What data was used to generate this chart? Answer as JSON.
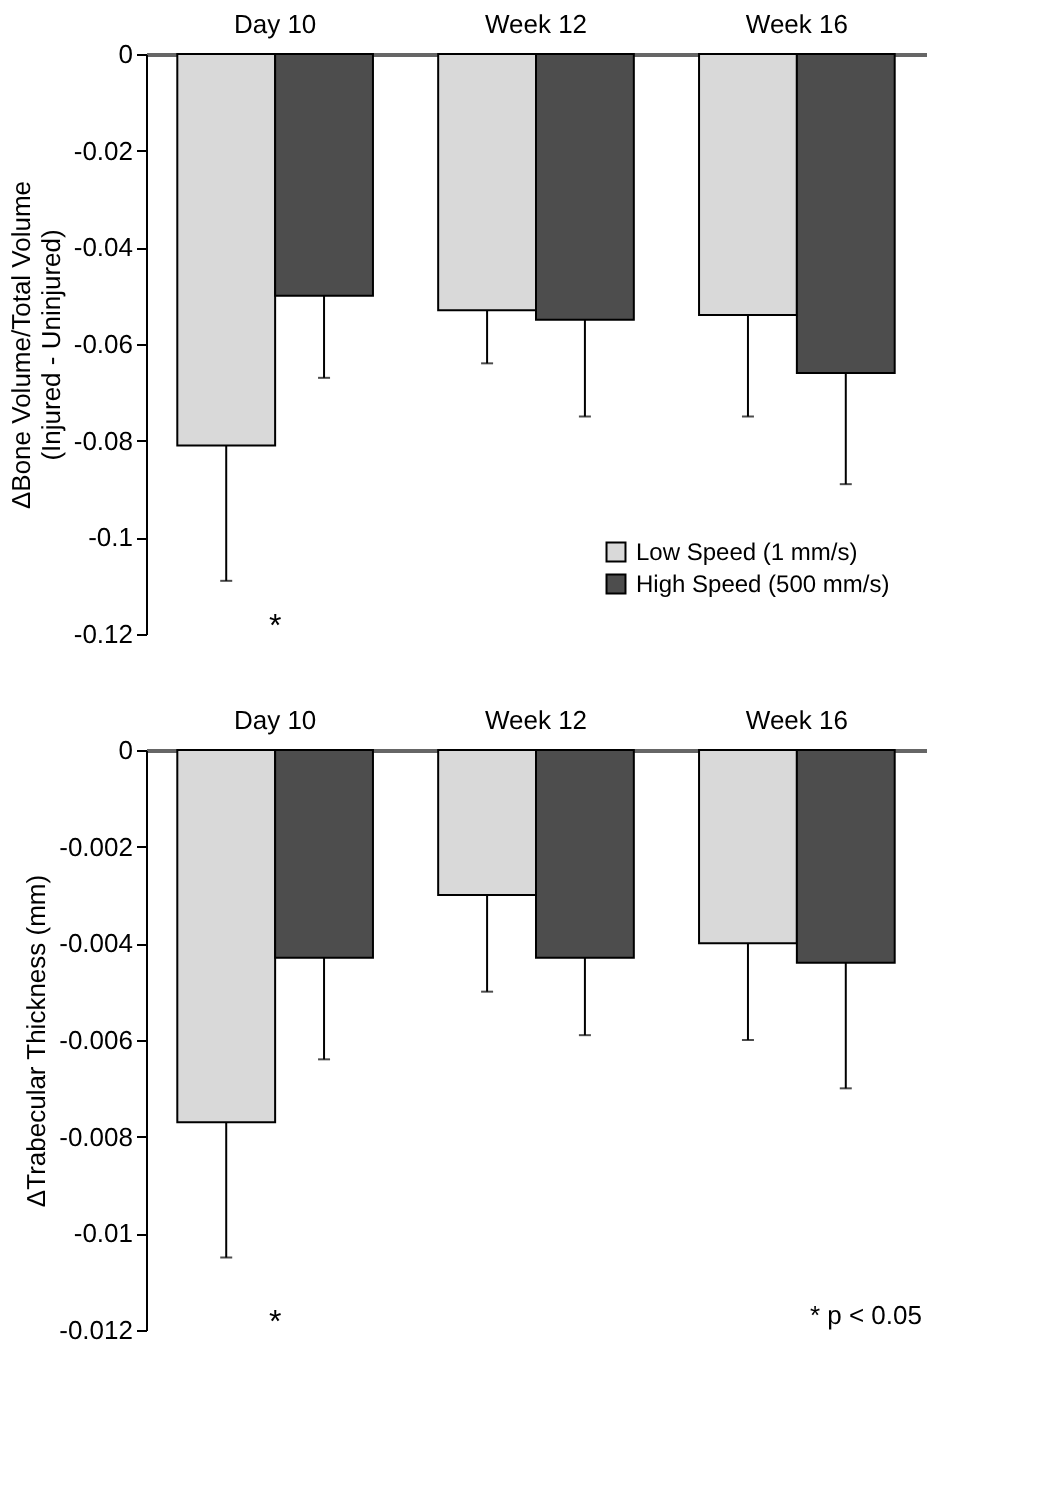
{
  "chart_data": [
    {
      "type": "bar",
      "categories": [
        "Day 10",
        "Week 12",
        "Week 16"
      ],
      "ylabel": "ΔBone Volume/Total Volume\n(Injured - Uninjured)",
      "ylim": [
        -0.12,
        0
      ],
      "yticks": [
        0,
        -0.02,
        -0.04,
        -0.06,
        -0.08,
        -0.1,
        -0.12
      ],
      "grid": false,
      "legend": "bottom right",
      "series": [
        {
          "name": "Low Speed (1 mm/s)",
          "color": "#d9d9d9",
          "values": [
            -0.081,
            -0.053,
            -0.054
          ],
          "errors": [
            [
              -0.109,
              -0.081
            ],
            [
              -0.064,
              -0.053
            ],
            [
              -0.075,
              -0.054
            ]
          ]
        },
        {
          "name": "High Speed (500 mm/s)",
          "color": "#4d4d4d",
          "values": [
            -0.05,
            -0.055,
            -0.066
          ],
          "errors": [
            [
              -0.067,
              -0.05
            ],
            [
              -0.075,
              -0.055
            ],
            [
              -0.089,
              -0.066
            ]
          ]
        }
      ],
      "annotations": [
        "*"
      ]
    },
    {
      "type": "bar",
      "categories": [
        "Day 10",
        "Week 12",
        "Week 16"
      ],
      "ylabel": "ΔTrabecular Thickness (mm)",
      "ylim": [
        -0.012,
        0
      ],
      "yticks": [
        0,
        -0.002,
        -0.004,
        -0.006,
        -0.008,
        -0.01,
        -0.012
      ],
      "grid": false,
      "legend": false,
      "series": [
        {
          "color": "#d9d9d9",
          "values": [
            -0.0077,
            -0.003,
            -0.004
          ],
          "errors": [
            [
              -0.0105,
              -0.0077
            ],
            [
              -0.005,
              -0.003
            ],
            [
              -0.006,
              -0.004
            ]
          ]
        },
        {
          "color": "#4d4d4d",
          "values": [
            -0.0043,
            -0.0043,
            -0.0044
          ],
          "errors": [
            [
              -0.0064,
              -0.0043
            ],
            [
              -0.0059,
              -0.0043
            ],
            [
              -0.007,
              -0.0044
            ]
          ]
        }
      ],
      "annotations": [
        "*",
        "* p < 0.05"
      ]
    }
  ]
}
